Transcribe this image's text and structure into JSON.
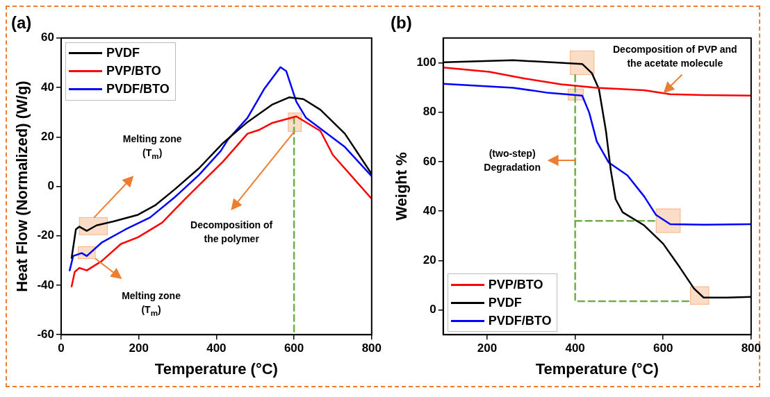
{
  "chart_data": [
    {
      "type": "line",
      "title": "(a)",
      "xlabel": "Temperature (°C)",
      "ylabel": "Heat Flow (Normalized) (W/g)",
      "xlim": [
        0,
        800
      ],
      "xticks": [
        0,
        200,
        400,
        600,
        800
      ],
      "ylim": [
        -60,
        60
      ],
      "yticks": [
        -60,
        -40,
        -20,
        0,
        20,
        40,
        60
      ],
      "legend": "top left",
      "annotations": [
        "Melting zone (T$_{m}$)",
        "Melting zone (T$_{m}$)",
        "Decomposition of the polymer"
      ],
      "series": [
        {
          "name": "PVDF",
          "color": "#000000",
          "x": [
            27,
            38,
            47,
            66,
            91,
            135,
            198,
            242,
            292,
            355,
            417,
            480,
            543,
            587,
            624,
            668,
            731,
            800
          ],
          "values": [
            -29,
            -17.4,
            -16.3,
            -18,
            -15.8,
            -14.2,
            -11.5,
            -7.7,
            -1.3,
            7.3,
            17.5,
            26,
            33,
            36,
            35.3,
            31,
            21.3,
            5
          ]
        },
        {
          "name": "PVP/BTO",
          "color": "#ff0000",
          "x": [
            27,
            35,
            47,
            66,
            104,
            154,
            198,
            260,
            323,
            417,
            480,
            511,
            543,
            606,
            668,
            700,
            800
          ],
          "values": [
            -40.5,
            -34.6,
            -33,
            -34,
            -30.3,
            -23.3,
            -20.6,
            -14.7,
            -4.5,
            10,
            21.3,
            22.9,
            25.6,
            28.3,
            22.4,
            12.7,
            -5
          ]
        },
        {
          "name": "PVDF/BTO",
          "color": "#0000ff",
          "x": [
            22,
            31,
            53,
            66,
            104,
            166,
            229,
            292,
            355,
            411,
            430,
            480,
            524,
            565,
            580,
            606,
            631,
            668,
            731,
            800
          ],
          "values": [
            -34,
            -28.2,
            -27,
            -28.2,
            -22.8,
            -17.4,
            -12.6,
            -4.5,
            4.6,
            14.3,
            19,
            27.7,
            39.6,
            48.2,
            46.6,
            34.2,
            27.7,
            23.4,
            15.9,
            4.1
          ]
        },
        {
          "type": "line",
          "color": "#70ad47",
          "line_style": "dashed",
          "x": [
            600,
            600
          ],
          "values": [
            28,
            -60
          ]
        }
      ]
    },
    {
      "type": "line",
      "title": "(b)",
      "xlabel": "Temperature (°C)",
      "ylabel": "Weight %",
      "xlim": [
        100,
        800
      ],
      "xticks": [
        200,
        400,
        600,
        800
      ],
      "ylim": [
        -10,
        110
      ],
      "yticks": [
        0,
        20,
        40,
        60,
        80,
        100
      ],
      "legend": "bottom left",
      "annotations": [
        "Decomposition of PVP and the acetate molecule",
        "(two-step) Degradation"
      ],
      "series": [
        {
          "name": "PVP/BTO",
          "color": "#ff0000",
          "x": [
            100,
            205,
            286,
            368,
            449,
            557,
            616,
            692,
            800
          ],
          "values": [
            98.1,
            96.3,
            93.6,
            91.3,
            89.9,
            88.9,
            87.3,
            86.9,
            86.7
          ]
        },
        {
          "name": "PVDF",
          "color": "#000000",
          "x": [
            100,
            259,
            368,
            416,
            438,
            454,
            470,
            481,
            492,
            508,
            557,
            600,
            638,
            670,
            692,
            746,
            800
          ],
          "values": [
            100.2,
            101,
            100,
            99.5,
            95.8,
            89.4,
            72.4,
            56.5,
            44.8,
            39.5,
            34.2,
            26.8,
            17.2,
            8.7,
            5,
            5,
            5.3
          ]
        },
        {
          "name": "PVDF/BTO",
          "color": "#0000ff",
          "x": [
            100,
            259,
            340,
            416,
            432,
            449,
            476,
            519,
            557,
            584,
            616,
            692,
            800
          ],
          "values": [
            91.5,
            89.9,
            87.8,
            86.7,
            79.8,
            68.2,
            59.7,
            54.4,
            45.9,
            38.4,
            34.7,
            34.5,
            34.7
          ]
        },
        {
          "type": "line",
          "color": "#70ad47",
          "line_style": "dashed",
          "x": [
            400,
            400,
            665
          ],
          "values": [
            95,
            3.5,
            3.5
          ]
        },
        {
          "type": "line",
          "color": "#70ad47",
          "line_style": "dashed",
          "x": [
            400,
            584
          ],
          "values": [
            36,
            36
          ]
        }
      ]
    }
  ]
}
